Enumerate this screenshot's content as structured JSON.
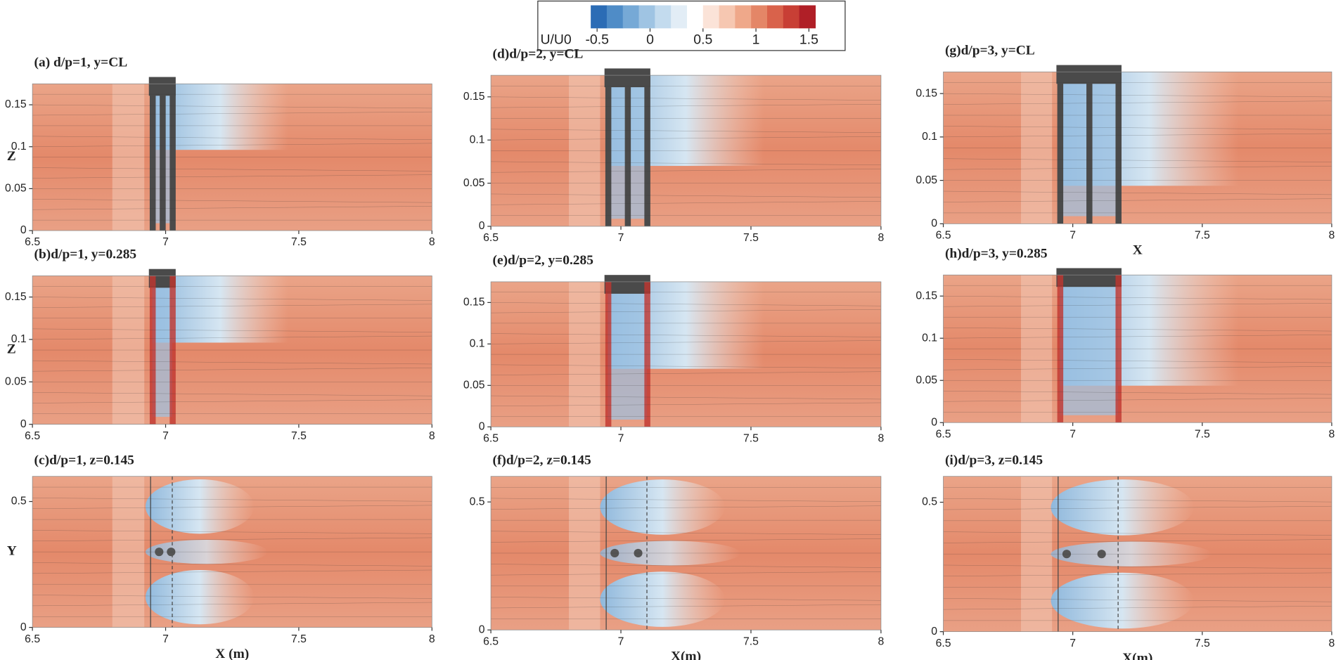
{
  "colorbar": {
    "label": "U/U0",
    "lim": [
      -0.56,
      1.56
    ],
    "ticks": [
      -0.5,
      0,
      0.5,
      1,
      1.5
    ],
    "colors": [
      "#2b6cb5",
      "#4f8cc7",
      "#76a9d6",
      "#9fc4e3",
      "#c3dbee",
      "#e2edf6",
      "#ffffff",
      "#fbe3d8",
      "#f6c7b1",
      "#efa88a",
      "#e48667",
      "#d9624b",
      "#c83f35",
      "#b01f27"
    ]
  },
  "chart_data": [
    {
      "type": "contour",
      "title": "(a) d/p=1, y=CL",
      "ylabel": "Z",
      "xlim": [
        6.5,
        8
      ],
      "ylim": [
        0,
        0.175
      ],
      "xticks": [
        6.5,
        7,
        7.5,
        8
      ],
      "yticks": [
        0,
        0.05,
        0.1,
        0.15
      ]
    },
    {
      "type": "contour",
      "title": "(d)d/p=2, y=CL",
      "xlim": [
        6.5,
        8
      ],
      "ylim": [
        0,
        0.175
      ],
      "xticks": [
        6.5,
        7,
        7.5,
        8
      ],
      "yticks": [
        0,
        0.05,
        0.1,
        0.15
      ]
    },
    {
      "type": "contour",
      "title": "(g)d/p=3, y=CL",
      "xlabel": "X",
      "xlim": [
        6.5,
        8
      ],
      "ylim": [
        0,
        0.175
      ],
      "xticks": [
        6.5,
        7,
        7.5,
        8
      ],
      "yticks": [
        0,
        0.05,
        0.1,
        0.15
      ]
    },
    {
      "type": "contour",
      "title": "(b)d/p=1, y=0.285",
      "ylabel": "Z",
      "xlim": [
        6.5,
        8
      ],
      "ylim": [
        0,
        0.175
      ],
      "xticks": [
        6.5,
        7,
        7.5,
        8
      ],
      "yticks": [
        0,
        0.05,
        0.1,
        0.15
      ]
    },
    {
      "type": "contour",
      "title": "(e)d/p=2, y=0.285",
      "xlim": [
        6.5,
        8
      ],
      "ylim": [
        0,
        0.175
      ],
      "xticks": [
        6.5,
        7,
        7.5,
        8
      ],
      "yticks": [
        0,
        0.05,
        0.1,
        0.15
      ]
    },
    {
      "type": "contour",
      "title": "(h)d/p=3, y=0.285",
      "xlim": [
        6.5,
        8
      ],
      "ylim": [
        0,
        0.175
      ],
      "xticks": [
        6.5,
        7,
        7.5,
        8
      ],
      "yticks": [
        0,
        0.05,
        0.1,
        0.15
      ]
    },
    {
      "type": "contour",
      "title": "(c)d/p=1, z=0.145",
      "ylabel": "Y",
      "xlabel": "X (m)",
      "xlim": [
        6.5,
        8
      ],
      "ylim": [
        0,
        0.6
      ],
      "xticks": [
        6.5,
        7,
        7.5,
        8
      ],
      "yticks": [
        0,
        0.5
      ]
    },
    {
      "type": "contour",
      "title": "(f)d/p=2, z=0.145",
      "xlabel": "X(m)",
      "xlim": [
        6.5,
        8
      ],
      "ylim": [
        0,
        0.6
      ],
      "xticks": [
        6.5,
        7,
        7.5,
        8
      ],
      "yticks": [
        0,
        0.5
      ]
    },
    {
      "type": "contour",
      "title": "(i)d/p=3, z=0.145",
      "xlabel": "X(m)",
      "xlim": [
        6.5,
        8
      ],
      "ylim": [
        0,
        0.6
      ],
      "xticks": [
        6.5,
        7,
        7.5,
        8
      ],
      "yticks": [
        0,
        0.5
      ]
    }
  ]
}
